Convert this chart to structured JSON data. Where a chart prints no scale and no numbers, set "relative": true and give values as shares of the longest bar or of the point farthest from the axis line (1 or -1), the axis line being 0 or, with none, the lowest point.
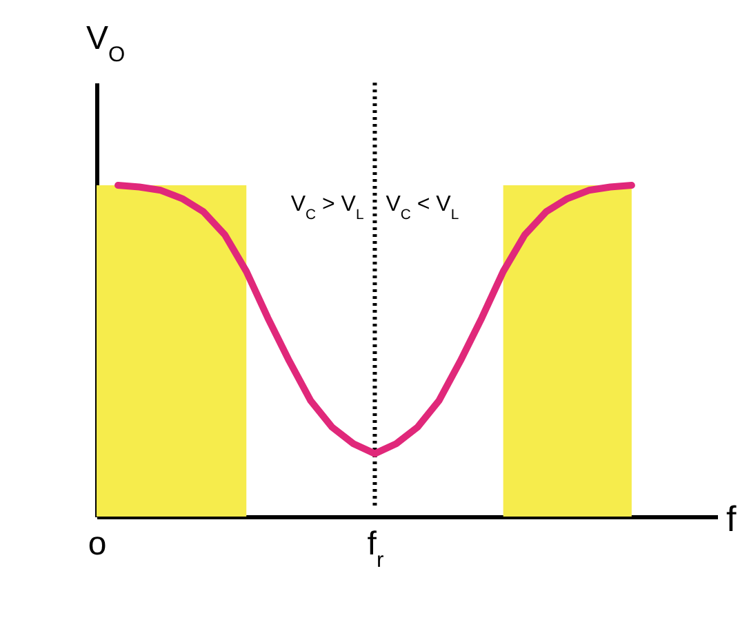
{
  "chart_data": {
    "type": "line",
    "relative": true,
    "xlabel": "f",
    "ylabel": "V$_{O}$",
    "tick_labels": "x",
    "grid": false,
    "marker": "none",
    "line_style": "solid",
    "categories": [
      "o",
      null,
      null,
      null,
      null,
      null,
      null,
      null,
      null,
      null,
      null,
      null,
      null,
      "f$_{r}$",
      null,
      null,
      null,
      null,
      null,
      null,
      null,
      null,
      null,
      null,
      null,
      null,
      null,
      null,
      null,
      null
    ],
    "series": [
      {
        "type": "area",
        "color": "#f6ec4c",
        "values": [
          1,
          1,
          1,
          1,
          1,
          1,
          1,
          1,
          null,
          null,
          null,
          null,
          null,
          null,
          null,
          null,
          null,
          null,
          null,
          null,
          null,
          null,
          null,
          null,
          null,
          null,
          null,
          null,
          null,
          null
        ]
      },
      {
        "type": "area",
        "color": "#f6ec4c",
        "values": [
          null,
          null,
          null,
          null,
          null,
          null,
          null,
          null,
          null,
          null,
          null,
          null,
          null,
          null,
          null,
          null,
          null,
          null,
          null,
          1,
          1,
          1,
          1,
          1,
          1,
          1,
          null,
          null,
          null,
          null
        ]
      },
      {
        "color": "#e0287a",
        "values": [
          null,
          1,
          0.995,
          0.985,
          0.96,
          0.92,
          0.85,
          0.74,
          0.6,
          0.47,
          0.35,
          0.27,
          0.22,
          0.19,
          0.22,
          0.27,
          0.35,
          0.47,
          0.6,
          0.74,
          0.85,
          0.92,
          0.96,
          0.985,
          0.995,
          1,
          null,
          null,
          null,
          null
        ]
      }
    ],
    "ref_lines": [
      {
        "axis": "x",
        "value": "f$_{r}$",
        "label": null,
        "color": "#000000",
        "line_style": "dotted"
      }
    ],
    "annotations": [
      "V$_{C}$ > V$_{L}$",
      "V$_{C}$ < V$_{L}$"
    ]
  }
}
